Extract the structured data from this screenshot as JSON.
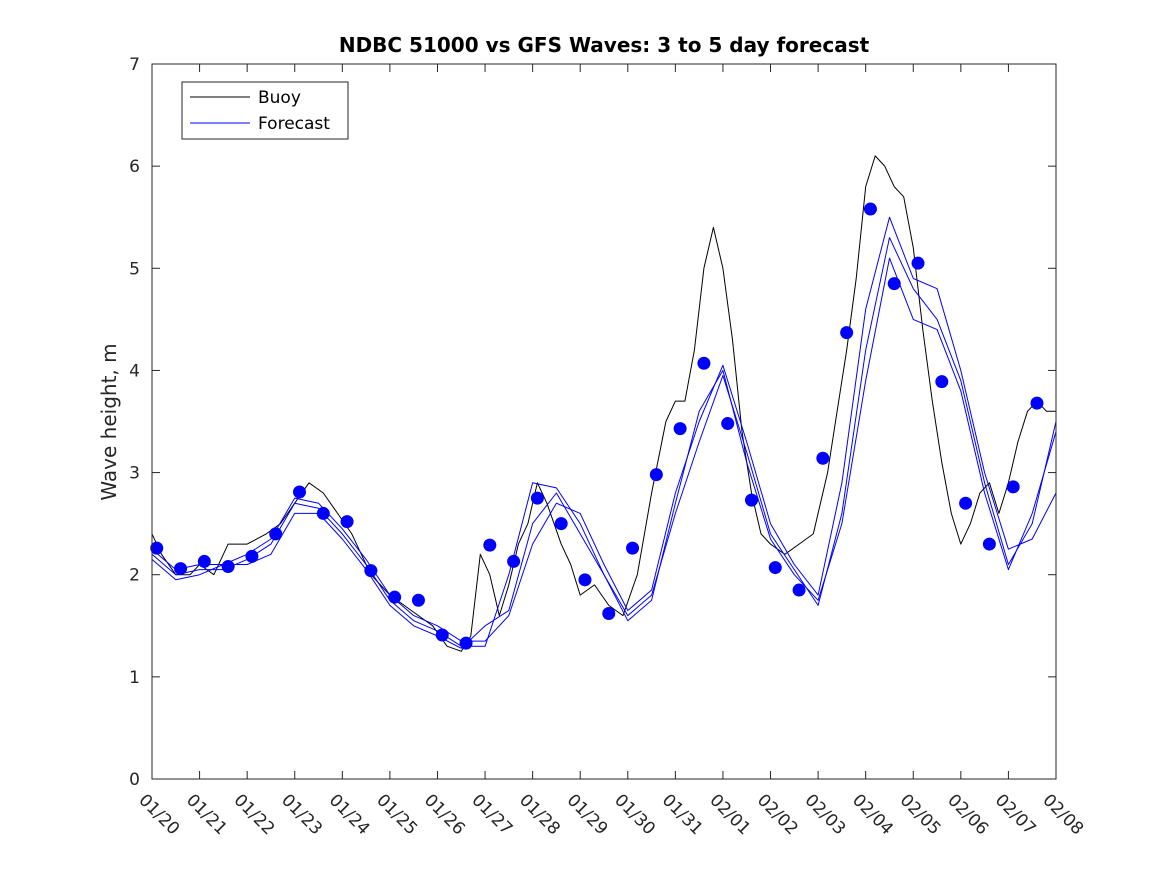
{
  "chart_data": {
    "type": "line",
    "title": "NDBC 51000 vs GFS Waves: 3 to 5 day forecast",
    "xlabel": "",
    "ylabel": "Wave height, m",
    "xlim": [
      0,
      19
    ],
    "ylim": [
      0,
      7
    ],
    "yticks": [
      0,
      1,
      2,
      3,
      4,
      5,
      6,
      7
    ],
    "xtick_labels": [
      "01/20",
      "01/21",
      "01/22",
      "01/23",
      "01/24",
      "01/25",
      "01/26",
      "01/27",
      "01/28",
      "01/29",
      "01/30",
      "01/31",
      "02/01",
      "02/02",
      "02/03",
      "02/04",
      "02/05",
      "02/06",
      "02/07",
      "02/08"
    ],
    "grid": false,
    "legend": {
      "location": "top-left",
      "entries": [
        "Buoy",
        "Forecast"
      ]
    },
    "colors": {
      "buoy": "#000000",
      "forecast": "#0000ff",
      "markers": "#0000ff"
    },
    "series": [
      {
        "name": "Buoy",
        "x": [
          0,
          0.2,
          0.5,
          0.8,
          1.0,
          1.3,
          1.6,
          2.0,
          2.4,
          2.7,
          3.0,
          3.3,
          3.6,
          3.9,
          4.2,
          4.6,
          5.0,
          5.3,
          5.6,
          5.9,
          6.2,
          6.5,
          6.7,
          6.9,
          7.1,
          7.3,
          7.5,
          7.7,
          7.9,
          8.1,
          8.3,
          8.6,
          8.8,
          9.0,
          9.3,
          9.6,
          9.9,
          10.2,
          10.5,
          10.8,
          11.0,
          11.2,
          11.4,
          11.6,
          11.8,
          12.0,
          12.2,
          12.4,
          12.6,
          12.8,
          13.0,
          13.3,
          13.6,
          13.9,
          14.2,
          14.4,
          14.6,
          14.8,
          15.0,
          15.2,
          15.4,
          15.6,
          15.8,
          16.0,
          16.2,
          16.4,
          16.6,
          16.8,
          17.0,
          17.2,
          17.4,
          17.6,
          17.8,
          18.0,
          18.2,
          18.4,
          18.6,
          18.8,
          19.0
        ],
        "values": [
          2.4,
          2.2,
          2.0,
          2.0,
          2.1,
          2.0,
          2.3,
          2.3,
          2.4,
          2.5,
          2.7,
          2.9,
          2.8,
          2.6,
          2.4,
          2.0,
          1.8,
          1.7,
          1.6,
          1.5,
          1.3,
          1.25,
          1.4,
          2.2,
          2.0,
          1.6,
          1.9,
          2.3,
          2.5,
          2.9,
          2.7,
          2.3,
          2.1,
          1.8,
          1.9,
          1.7,
          1.6,
          2.0,
          2.8,
          3.5,
          3.7,
          3.7,
          4.2,
          5.0,
          5.4,
          5.0,
          4.3,
          3.4,
          2.8,
          2.4,
          2.3,
          2.2,
          2.3,
          2.4,
          3.0,
          3.6,
          4.2,
          4.9,
          5.8,
          6.1,
          6.0,
          5.8,
          5.7,
          5.2,
          4.4,
          3.7,
          3.1,
          2.6,
          2.3,
          2.5,
          2.8,
          2.9,
          2.6,
          2.9,
          3.3,
          3.6,
          3.7,
          3.6,
          3.6
        ]
      },
      {
        "name": "Forecast",
        "x": [
          0,
          0.5,
          1.0,
          1.5,
          2.0,
          2.5,
          3.0,
          3.5,
          4.0,
          4.5,
          5.0,
          5.5,
          6.0,
          6.5,
          7.0,
          7.5,
          8.0,
          8.5,
          9.0,
          9.5,
          10.0,
          10.5,
          11.0,
          11.5,
          12.0,
          12.5,
          13.0,
          13.5,
          14.0,
          14.5,
          15.0,
          15.5,
          16.0,
          16.5,
          17.0,
          17.5,
          18.0,
          18.5,
          19.0
        ],
        "values": [
          2.25,
          2.05,
          2.1,
          2.1,
          2.2,
          2.35,
          2.75,
          2.7,
          2.45,
          2.15,
          1.8,
          1.6,
          1.5,
          1.35,
          1.35,
          1.6,
          2.3,
          2.7,
          2.6,
          2.1,
          1.65,
          1.85,
          2.8,
          3.5,
          4.05,
          3.3,
          2.5,
          2.1,
          1.8,
          2.9,
          4.6,
          5.5,
          4.9,
          4.8,
          4.0,
          3.0,
          2.25,
          2.35,
          2.8
        ]
      },
      {
        "name": "Forecast",
        "x": [
          0,
          0.5,
          1.0,
          1.5,
          2.0,
          2.5,
          3.0,
          3.5,
          4.0,
          4.5,
          5.0,
          5.5,
          6.0,
          6.5,
          7.0,
          7.5,
          8.0,
          8.5,
          9.0,
          9.5,
          10.0,
          10.5,
          11.0,
          11.5,
          12.0,
          12.5,
          13.0,
          13.5,
          14.0,
          14.5,
          15.0,
          15.5,
          16.0,
          16.5,
          17.0,
          17.5,
          18.0,
          18.5,
          19.0
        ],
        "values": [
          2.2,
          2.0,
          2.05,
          2.05,
          2.15,
          2.3,
          2.7,
          2.65,
          2.4,
          2.1,
          1.75,
          1.55,
          1.45,
          1.3,
          1.3,
          2.0,
          2.9,
          2.85,
          2.5,
          2.0,
          1.6,
          1.8,
          2.6,
          3.3,
          3.95,
          3.2,
          2.4,
          2.05,
          1.7,
          2.6,
          4.2,
          5.3,
          4.8,
          4.5,
          3.9,
          2.9,
          2.1,
          2.5,
          3.5
        ]
      },
      {
        "name": "Forecast",
        "x": [
          0,
          0.5,
          1.0,
          1.5,
          2.0,
          2.5,
          3.0,
          3.5,
          4.0,
          4.5,
          5.0,
          5.5,
          6.0,
          6.5,
          7.0,
          7.5,
          8.0,
          8.5,
          9.0,
          9.5,
          10.0,
          10.5,
          11.0,
          11.5,
          12.0,
          12.5,
          13.0,
          13.5,
          14.0,
          14.5,
          15.0,
          15.5,
          16.0,
          16.5,
          17.0,
          17.5,
          18.0,
          18.5,
          19.0
        ],
        "values": [
          2.15,
          1.95,
          2.0,
          2.1,
          2.1,
          2.2,
          2.6,
          2.6,
          2.35,
          2.05,
          1.7,
          1.5,
          1.4,
          1.28,
          1.5,
          1.65,
          2.5,
          2.8,
          2.4,
          2.0,
          1.55,
          1.75,
          2.7,
          3.6,
          4.0,
          3.1,
          2.35,
          2.0,
          1.75,
          2.5,
          3.9,
          5.1,
          4.5,
          4.4,
          3.8,
          2.8,
          2.05,
          2.6,
          3.4
        ]
      },
      {
        "name": "Forecast markers",
        "x": [
          0.1,
          0.6,
          1.1,
          1.6,
          2.1,
          2.6,
          3.1,
          3.6,
          4.1,
          4.6,
          5.1,
          5.6,
          6.1,
          6.6,
          7.1,
          7.6,
          8.1,
          8.6,
          9.1,
          9.6,
          10.1,
          10.6,
          11.1,
          11.6,
          12.1,
          12.6,
          13.1,
          13.6,
          14.1,
          14.6,
          15.1,
          15.6,
          16.1,
          16.6,
          17.1,
          17.6,
          18.1,
          18.6
        ],
        "values": [
          2.26,
          2.06,
          2.13,
          2.08,
          2.18,
          2.4,
          2.81,
          2.6,
          2.52,
          2.04,
          1.78,
          1.75,
          1.41,
          1.33,
          2.29,
          2.13,
          2.75,
          2.5,
          1.95,
          1.62,
          2.26,
          2.98,
          3.43,
          4.07,
          3.48,
          2.73,
          2.07,
          1.85,
          3.14,
          4.37,
          5.58,
          4.85,
          5.05,
          3.89,
          2.7,
          2.3,
          2.86,
          3.68
        ]
      }
    ]
  }
}
